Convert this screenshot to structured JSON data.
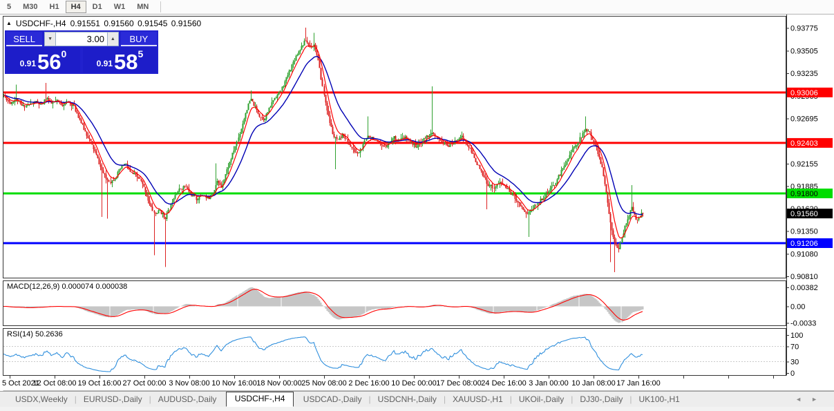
{
  "toolbar": {
    "timeframes": [
      {
        "label": "5",
        "active": false
      },
      {
        "label": "M30",
        "active": false
      },
      {
        "label": "H1",
        "active": false
      },
      {
        "label": "H4",
        "active": true
      },
      {
        "label": "D1",
        "active": false
      },
      {
        "label": "W1",
        "active": false
      },
      {
        "label": "MN",
        "active": false
      }
    ]
  },
  "chart": {
    "header": {
      "collapse_icon": "▲",
      "symbol": "USDCHF-,H4",
      "open": "0.91551",
      "high": "0.91560",
      "low": "0.91545",
      "close": "0.91560"
    },
    "trade_panel": {
      "sell_label": "SELL",
      "buy_label": "BUY",
      "volume": "3.00",
      "spin_down_icon": "▼",
      "spin_up_icon": "▲",
      "sell_price": {
        "prefix": "0.91",
        "big": "56",
        "sup": "0"
      },
      "buy_price": {
        "prefix": "0.91",
        "big": "58",
        "sup": "5"
      }
    },
    "indicators": {
      "macd": {
        "label": "MACD(12,26,9)",
        "values": "0.000074 0.000038",
        "axis_ticks": [
          "0.00382",
          "0.00",
          "-0.0033"
        ]
      },
      "rsi": {
        "label": "RSI(14)",
        "value": "50.2636",
        "axis_ticks": [
          "100",
          "70",
          "30",
          "0"
        ]
      }
    }
  },
  "chart_data": {
    "type": "candlestick",
    "symbol": "USDCHF",
    "timeframe": "H4",
    "bars": 456,
    "seed": 11,
    "price_axis": {
      "min": 0.9081,
      "max": 0.93775,
      "ticks": [
        "0.93775",
        "0.93505",
        "0.93235",
        "0.92965",
        "0.92695",
        "0.92425",
        "0.92155",
        "0.91885",
        "0.91620",
        "0.91350",
        "0.91080",
        "0.90810"
      ]
    },
    "levels": [
      {
        "price": 0.93006,
        "label": "0.93006",
        "color": "#ff0000",
        "text": "#ffffff"
      },
      {
        "price": 0.92403,
        "label": "0.92403",
        "color": "#ff0000",
        "text": "#ffffff"
      },
      {
        "price": 0.918,
        "label": "0.91800",
        "color": "#00dd00",
        "text": "#000000"
      },
      {
        "price": 0.91206,
        "label": "0.91206",
        "color": "#0000ff",
        "text": "#ffffff"
      }
    ],
    "current_price": {
      "price": 0.9156,
      "label": "0.91560",
      "color": "#000000",
      "text": "#ffffff"
    },
    "waypoints": [
      [
        5,
        0.9297
      ],
      [
        15,
        0.9288
      ],
      [
        23,
        0.9293
      ],
      [
        32,
        0.9284
      ],
      [
        42,
        0.9286
      ],
      [
        52,
        0.9289
      ],
      [
        60,
        0.9285
      ],
      [
        67,
        0.9295
      ],
      [
        74,
        0.9287
      ],
      [
        82,
        0.929
      ],
      [
        90,
        0.9286
      ],
      [
        98,
        0.929
      ],
      [
        106,
        0.9284
      ],
      [
        114,
        0.927
      ],
      [
        122,
        0.9255
      ],
      [
        130,
        0.9243
      ],
      [
        138,
        0.9228
      ],
      [
        146,
        0.921
      ],
      [
        153,
        0.9198
      ],
      [
        160,
        0.9194
      ],
      [
        167,
        0.92
      ],
      [
        174,
        0.921
      ],
      [
        181,
        0.9216
      ],
      [
        188,
        0.9205
      ],
      [
        196,
        0.9201
      ],
      [
        203,
        0.9196
      ],
      [
        210,
        0.9184
      ],
      [
        217,
        0.9165
      ],
      [
        224,
        0.9155
      ],
      [
        231,
        0.916
      ],
      [
        238,
        0.915
      ],
      [
        245,
        0.9162
      ],
      [
        252,
        0.9178
      ],
      [
        260,
        0.9185
      ],
      [
        268,
        0.9189
      ],
      [
        276,
        0.9179
      ],
      [
        284,
        0.9173
      ],
      [
        292,
        0.9179
      ],
      [
        300,
        0.9173
      ],
      [
        308,
        0.9182
      ],
      [
        314,
        0.9194
      ],
      [
        320,
        0.9188
      ],
      [
        327,
        0.9205
      ],
      [
        334,
        0.9221
      ],
      [
        341,
        0.9238
      ],
      [
        348,
        0.9256
      ],
      [
        355,
        0.9277
      ],
      [
        362,
        0.9293
      ],
      [
        368,
        0.9284
      ],
      [
        375,
        0.9273
      ],
      [
        382,
        0.9269
      ],
      [
        389,
        0.928
      ],
      [
        396,
        0.9293
      ],
      [
        403,
        0.9299
      ],
      [
        410,
        0.931
      ],
      [
        418,
        0.9326
      ],
      [
        426,
        0.9341
      ],
      [
        434,
        0.9353
      ],
      [
        442,
        0.9363
      ],
      [
        448,
        0.9355
      ],
      [
        455,
        0.9358
      ],
      [
        461,
        0.9335
      ],
      [
        468,
        0.93
      ],
      [
        475,
        0.927
      ],
      [
        482,
        0.9248
      ],
      [
        489,
        0.9242
      ],
      [
        496,
        0.9251
      ],
      [
        503,
        0.9241
      ],
      [
        510,
        0.9233
      ],
      [
        517,
        0.9227
      ],
      [
        524,
        0.9234
      ],
      [
        531,
        0.9249
      ],
      [
        538,
        0.9247
      ],
      [
        546,
        0.924
      ],
      [
        554,
        0.9235
      ],
      [
        562,
        0.924
      ],
      [
        570,
        0.9247
      ],
      [
        578,
        0.9243
      ],
      [
        586,
        0.9247
      ],
      [
        594,
        0.9241
      ],
      [
        602,
        0.9236
      ],
      [
        610,
        0.9242
      ],
      [
        618,
        0.9249
      ],
      [
        626,
        0.9251
      ],
      [
        634,
        0.9244
      ],
      [
        642,
        0.924
      ],
      [
        650,
        0.9237
      ],
      [
        658,
        0.9242
      ],
      [
        666,
        0.9249
      ],
      [
        674,
        0.9241
      ],
      [
        682,
        0.9229
      ],
      [
        690,
        0.9216
      ],
      [
        698,
        0.9202
      ],
      [
        706,
        0.9191
      ],
      [
        714,
        0.9187
      ],
      [
        722,
        0.9193
      ],
      [
        730,
        0.9189
      ],
      [
        738,
        0.9181
      ],
      [
        746,
        0.9174
      ],
      [
        754,
        0.9165
      ],
      [
        762,
        0.9155
      ],
      [
        770,
        0.9161
      ],
      [
        778,
        0.9169
      ],
      [
        786,
        0.9176
      ],
      [
        794,
        0.9183
      ],
      [
        802,
        0.9191
      ],
      [
        810,
        0.9203
      ],
      [
        818,
        0.9216
      ],
      [
        826,
        0.9229
      ],
      [
        834,
        0.9239
      ],
      [
        842,
        0.925
      ],
      [
        848,
        0.9257
      ],
      [
        854,
        0.925
      ],
      [
        860,
        0.9241
      ],
      [
        866,
        0.9226
      ],
      [
        872,
        0.9206
      ],
      [
        878,
        0.9176
      ],
      [
        884,
        0.914
      ],
      [
        890,
        0.9122
      ],
      [
        896,
        0.9113
      ],
      [
        902,
        0.9136
      ],
      [
        908,
        0.9151
      ],
      [
        914,
        0.9163
      ],
      [
        919,
        0.915
      ],
      [
        924,
        0.915
      ],
      [
        929,
        0.9156
      ]
    ],
    "spikes": [
      [
        23,
        0.931,
        "high"
      ],
      [
        67,
        0.9312,
        "high"
      ],
      [
        148,
        0.9152,
        "low"
      ],
      [
        155,
        0.915,
        "low"
      ],
      [
        222,
        0.9106,
        "low"
      ],
      [
        238,
        0.9092,
        "low"
      ],
      [
        312,
        0.9216,
        "high"
      ],
      [
        362,
        0.9303,
        "high"
      ],
      [
        442,
        0.9378,
        "high"
      ],
      [
        455,
        0.9372,
        "high"
      ],
      [
        484,
        0.9209,
        "low"
      ],
      [
        532,
        0.9272,
        "high"
      ],
      [
        625,
        0.9308,
        "high"
      ],
      [
        705,
        0.9161,
        "low"
      ],
      [
        765,
        0.9128,
        "low"
      ],
      [
        847,
        0.9272,
        "high"
      ],
      [
        884,
        0.9098,
        "low"
      ],
      [
        890,
        0.9086,
        "low"
      ],
      [
        914,
        0.919,
        "high"
      ]
    ],
    "date_axis": {
      "first_tick_x": 14,
      "spacing": 65,
      "labels": [
        "5 Oct 2021",
        "12 Oct 08:00",
        "19 Oct 16:00",
        "27 Oct 00:00",
        "3 Nov 08:00",
        "10 Nov 16:00",
        "18 Nov 00:00",
        "25 Nov 08:00",
        "2 Dec 16:00",
        "10 Dec 00:00",
        "17 Dec 08:00",
        "24 Dec 16:00",
        "3 Jan 00:00",
        "10 Jan 08:00",
        "17 Jan 16:00"
      ]
    },
    "rsi_levels": [
      70,
      30
    ],
    "colors": {
      "up": "#2ea02e",
      "down": "#dc2020",
      "ma_fast": "#ff0000",
      "ma_slow": "#0000b4",
      "macd_hist": "#c6c6c6",
      "macd_signal": "#ff0000",
      "rsi": "#2f8fdd",
      "panel_border": "#333333",
      "accent_blue": "#2121ce"
    }
  },
  "tabs": {
    "items": [
      {
        "label": "USDX,Weekly",
        "active": false
      },
      {
        "label": "EURUSD-,Daily",
        "active": false
      },
      {
        "label": "AUDUSD-,Daily",
        "active": false
      },
      {
        "label": "USDCHF-,H4",
        "active": true
      },
      {
        "label": "USDCAD-,Daily",
        "active": false
      },
      {
        "label": "USDCNH-,Daily",
        "active": false
      },
      {
        "label": "XAUUSD-,H1",
        "active": false
      },
      {
        "label": "UKOil-,Daily",
        "active": false
      },
      {
        "label": "DJ30-,Daily",
        "active": false
      },
      {
        "label": "UK100-,H1",
        "active": false
      }
    ],
    "scroll_left_icon": "◄",
    "scroll_right_icon": "►"
  }
}
